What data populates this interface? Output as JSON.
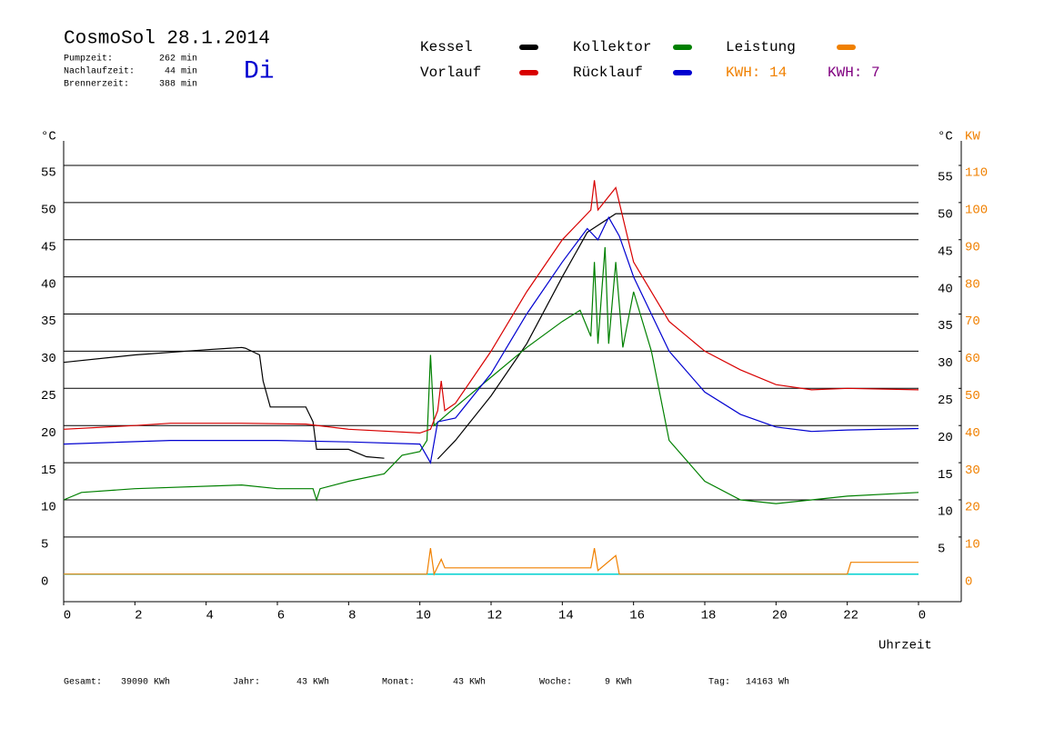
{
  "chart_data": {
    "type": "line",
    "title": "CosmoSol 28.1.2014",
    "info": [
      {
        "label": "Pumpzeit:",
        "value": "262 min"
      },
      {
        "label": "Nachlaufzeit:",
        "value": "44 min"
      },
      {
        "label": "Brennerzeit:",
        "value": "388 min"
      }
    ],
    "day": "Di",
    "kwh_labels": [
      {
        "text": "KWH: 14",
        "color": "#f08000"
      },
      {
        "text": "KWH: 7",
        "color": "#800080"
      }
    ],
    "y_label": "°C",
    "y2_label_c": "°C",
    "y2_label": "KW",
    "x_label": "Uhrzeit",
    "xlim": [
      0,
      25.2
    ],
    "xticks": [
      0,
      2,
      4,
      6,
      8,
      10,
      12,
      14,
      16,
      18,
      20,
      22,
      {
        "value": 24,
        "label": "0"
      }
    ],
    "ylim": [
      -3.7,
      58.3
    ],
    "yticks": [
      0,
      5,
      10,
      15,
      20,
      25,
      30,
      35,
      40,
      45,
      50,
      55
    ],
    "y_right_ticks": [
      5,
      10,
      15,
      20,
      25,
      30,
      35,
      40,
      45,
      50,
      55
    ],
    "y2lim": [
      -7.4,
      116.6
    ],
    "y2ticks": [
      0,
      10,
      20,
      30,
      40,
      50,
      60,
      70,
      80,
      90,
      100,
      110
    ],
    "grid": true,
    "zero_line_color": "#00d0d0",
    "series": [
      {
        "name": "Kessel",
        "color": "#000000",
        "x": [
          0,
          2,
          4,
          5,
          5.1,
          5.5,
          5.6,
          5.8,
          6.8,
          7,
          7.1,
          8,
          8.5,
          9,
          9.7,
          10.5,
          11,
          12,
          13,
          14,
          14.7,
          15.5,
          15.8,
          24
        ],
        "values": [
          28.5,
          29.5,
          30.2,
          30.5,
          30.4,
          29.5,
          26,
          22.5,
          22.5,
          20.5,
          16.8,
          16.8,
          15.8,
          15.6,
          null,
          15.5,
          18,
          24,
          31,
          40,
          46,
          48.5,
          48.5,
          48.5
        ]
      },
      {
        "name": "Kollektor",
        "color": "#008000",
        "x": [
          0,
          0.5,
          2,
          5,
          6,
          7,
          7.1,
          7.2,
          8,
          9,
          9.5,
          10,
          10.2,
          10.3,
          10.4,
          11,
          12,
          13,
          14,
          14.5,
          14.8,
          14.9,
          15,
          15.2,
          15.3,
          15.5,
          15.7,
          16,
          16.5,
          17,
          18,
          19,
          20,
          21,
          22,
          24
        ],
        "values": [
          10,
          11,
          11.5,
          12,
          11.5,
          11.5,
          10,
          11.5,
          12.5,
          13.5,
          16,
          16.5,
          18,
          29.5,
          20,
          22.5,
          26.5,
          30.5,
          34,
          35.5,
          32,
          42,
          31,
          44,
          31,
          42,
          30.5,
          38,
          30,
          18,
          12.5,
          10,
          9.5,
          10,
          10.5,
          11
        ]
      },
      {
        "name": "Vorlauf",
        "color": "#d80000",
        "x": [
          0,
          2,
          3,
          5,
          6.8,
          8,
          10,
          10.3,
          10.5,
          10.6,
          10.7,
          11,
          12,
          13,
          14,
          14.8,
          14.9,
          15,
          15.5,
          15.8,
          16,
          17,
          18,
          19,
          20,
          21,
          22,
          24
        ],
        "values": [
          19.5,
          20,
          20.3,
          20.3,
          20.2,
          19.5,
          19,
          19.5,
          22,
          26,
          22,
          23,
          30,
          38,
          45,
          49,
          53,
          49,
          52,
          46,
          42,
          34,
          30,
          27.5,
          25.5,
          24.8,
          25,
          24.8
        ]
      },
      {
        "name": "Rücklauf",
        "color": "#0000d0",
        "x": [
          0,
          3,
          6,
          8,
          10,
          10.3,
          10.5,
          11,
          12,
          13,
          14,
          14.7,
          15,
          15.3,
          15.6,
          16,
          17,
          18,
          19,
          20,
          21,
          22,
          24
        ],
        "values": [
          17.5,
          18,
          18,
          17.8,
          17.5,
          15,
          20.5,
          21,
          27,
          35,
          42,
          46.5,
          45,
          48,
          45.5,
          40,
          30,
          24.5,
          21.5,
          19.8,
          19.2,
          19.4,
          19.6
        ]
      },
      {
        "name": "Leistung",
        "color": "#f08000",
        "axis": "y2",
        "x": [
          0,
          10.2,
          10.3,
          10.4,
          10.6,
          10.7,
          14.8,
          14.9,
          15,
          15.5,
          15.6,
          15.7,
          22,
          22.1,
          24
        ],
        "values": [
          0,
          0,
          7,
          0,
          4,
          1.7,
          1.7,
          7,
          1,
          5,
          0,
          0,
          0,
          3.2,
          3.2
        ]
      }
    ],
    "footer": [
      {
        "label": "Gesamt:",
        "value": "39090 KWh"
      },
      {
        "label": "Jahr:",
        "value": "43 KWh"
      },
      {
        "label": "Monat:",
        "value": "43 KWh"
      },
      {
        "label": "Woche:",
        "value": "9 KWh"
      },
      {
        "label": "Tag:",
        "value": "14163 Wh"
      }
    ]
  }
}
